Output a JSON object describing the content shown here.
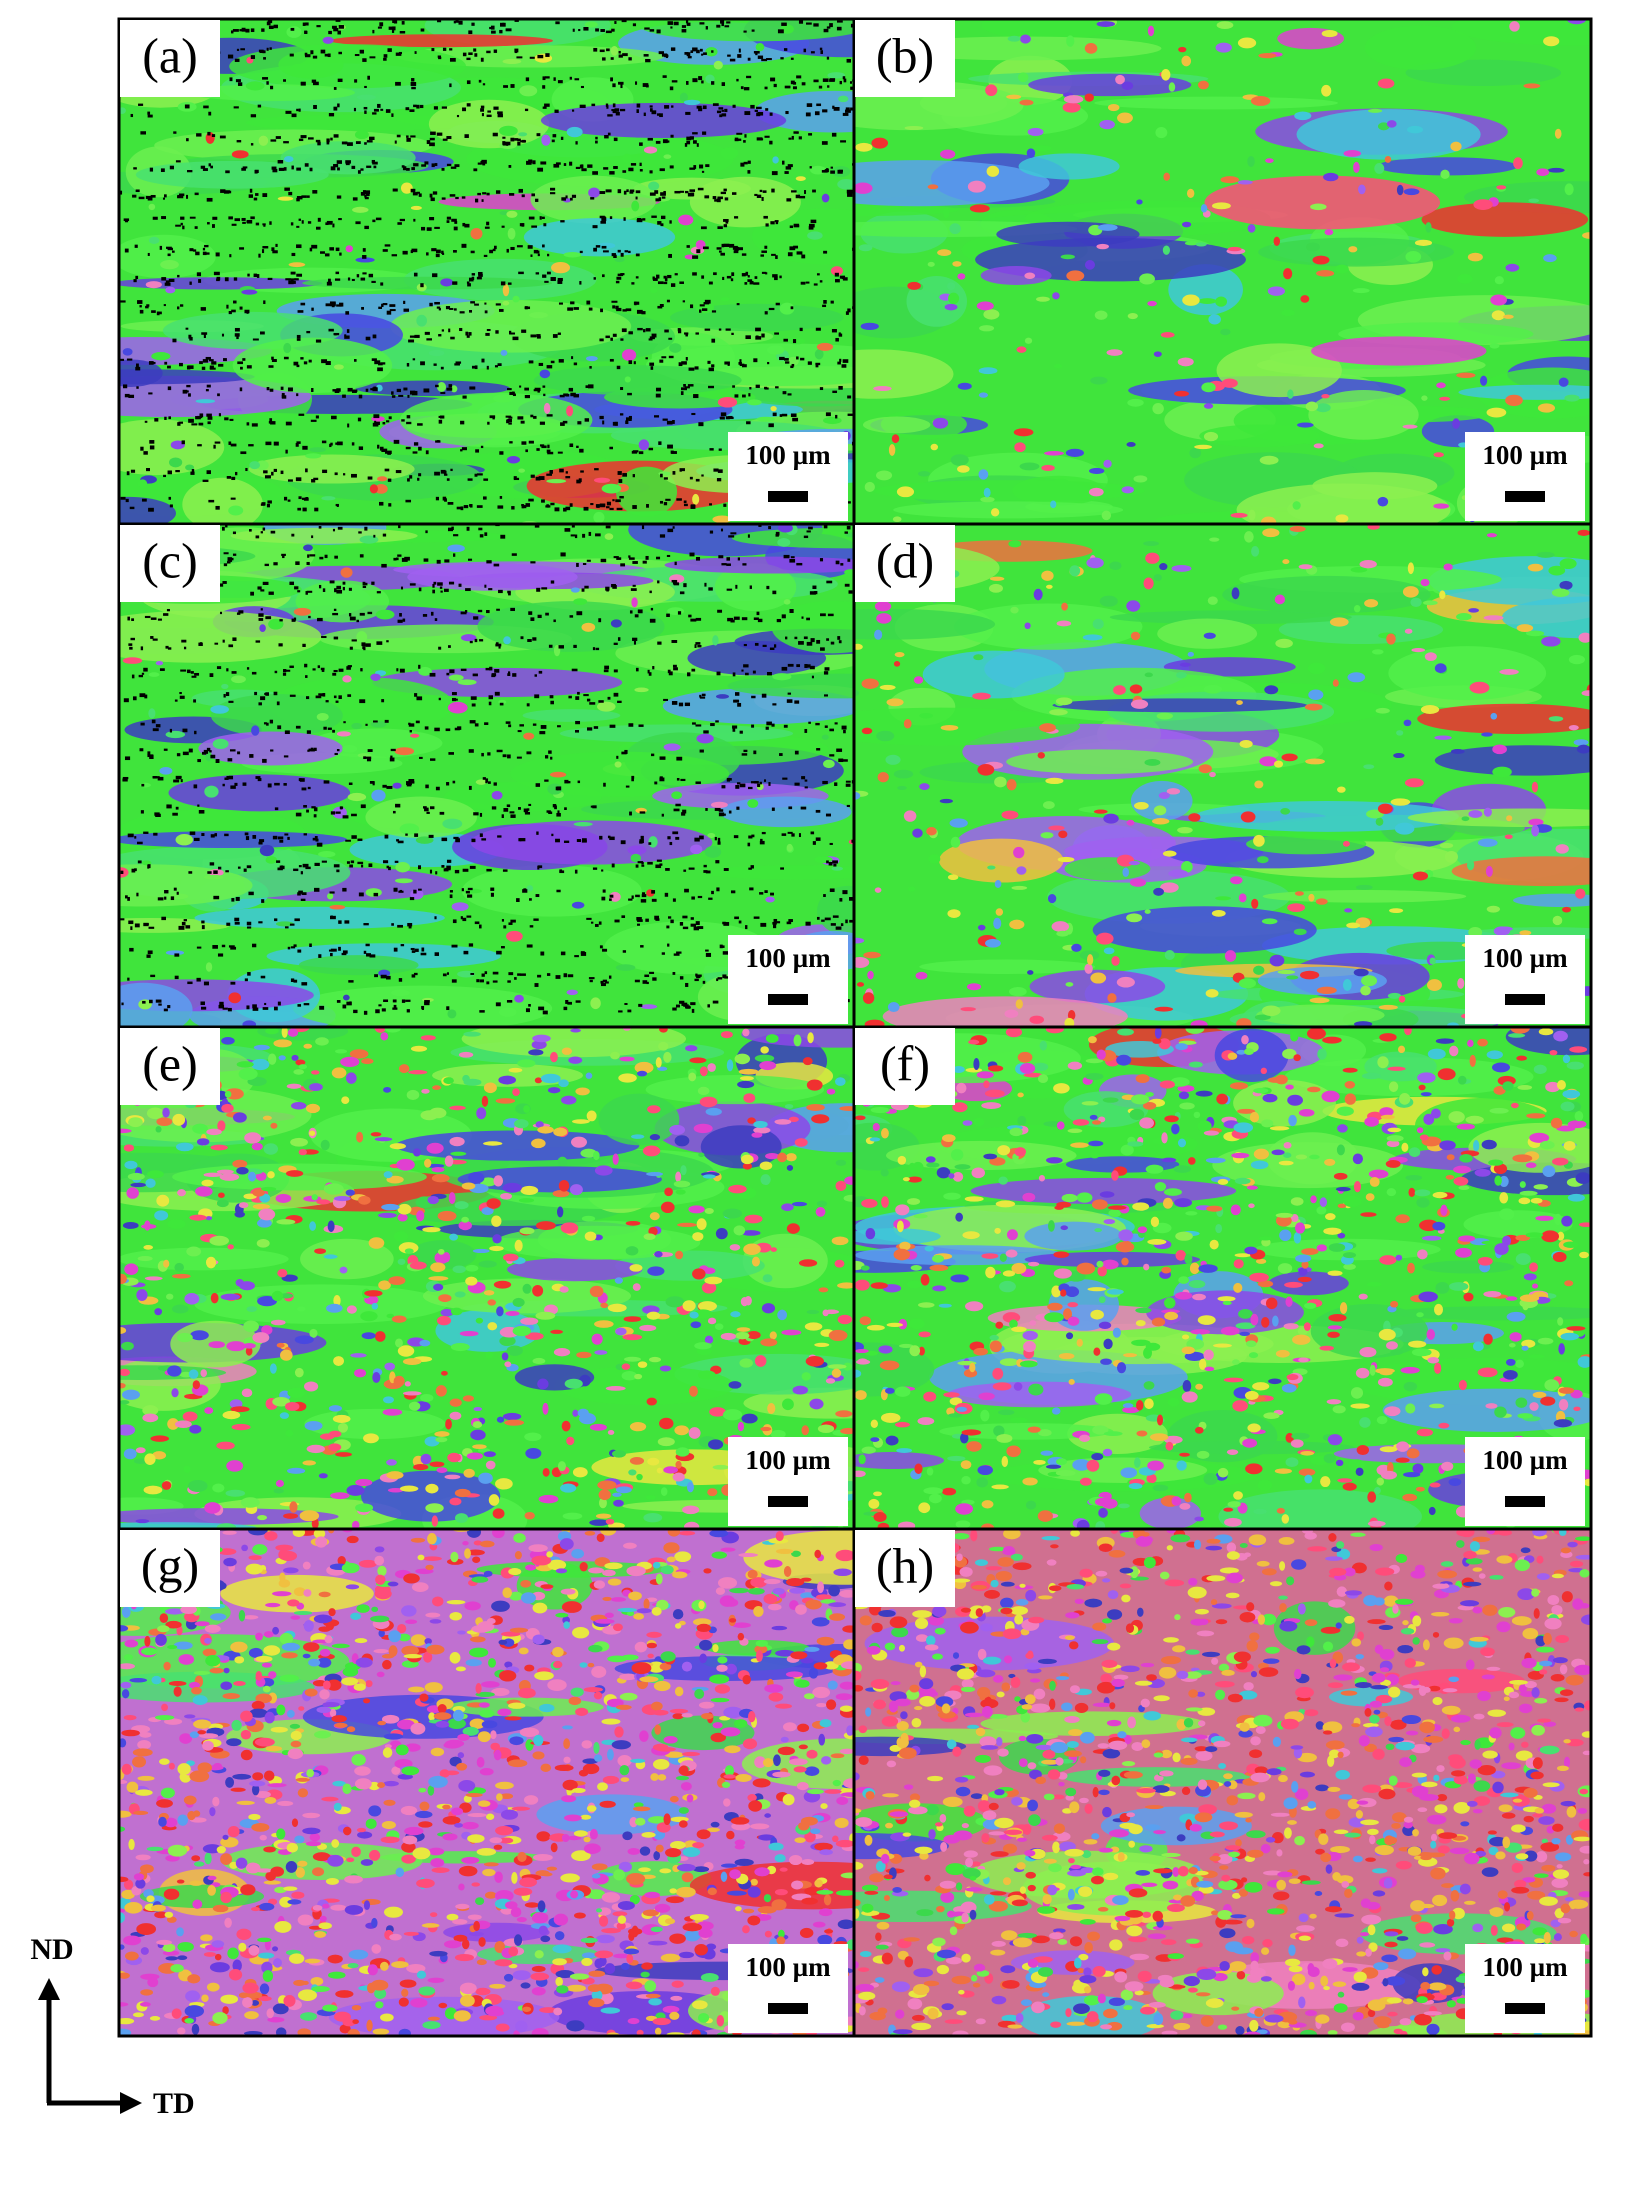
{
  "panels": [
    {
      "label": "(a)",
      "scale_bar": "100 µm"
    },
    {
      "label": "(b)",
      "scale_bar": "100 µm"
    },
    {
      "label": "(c)",
      "scale_bar": "100 µm"
    },
    {
      "label": "(d)",
      "scale_bar": "100 µm"
    },
    {
      "label": "(e)",
      "scale_bar": "100 µm"
    },
    {
      "label": "(f)",
      "scale_bar": "100 µm"
    },
    {
      "label": "(g)",
      "scale_bar": "100 µm"
    },
    {
      "label": "(h)",
      "scale_bar": "100 µm"
    }
  ],
  "axes": {
    "vertical": "ND",
    "horizontal": "TD"
  }
}
